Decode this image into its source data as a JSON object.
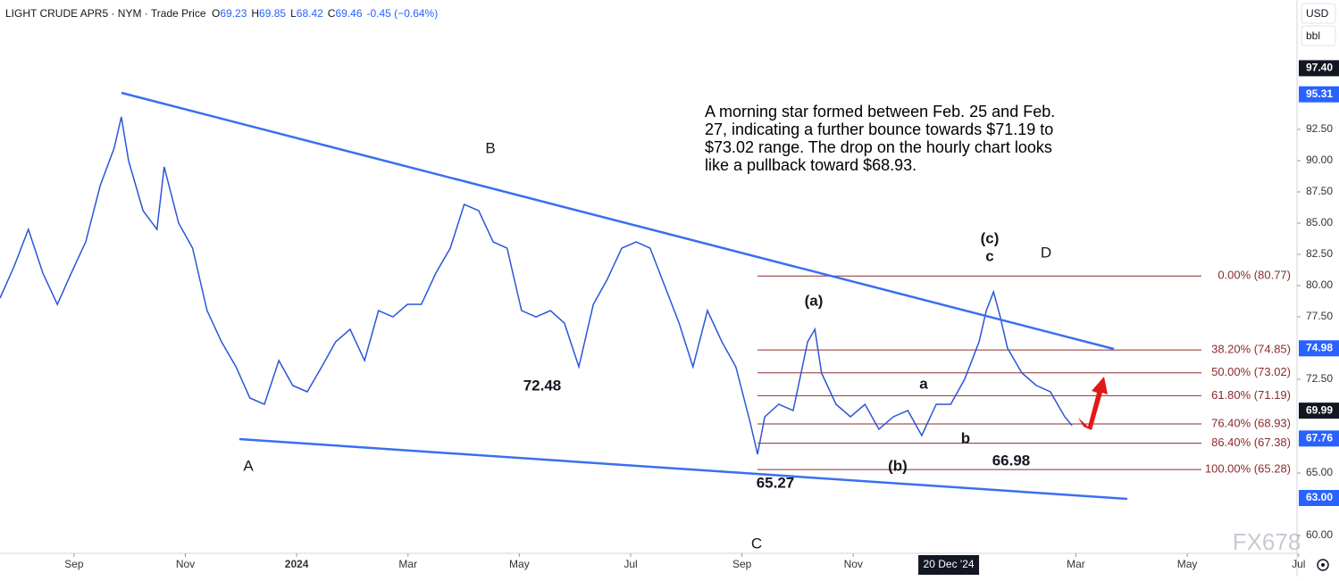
{
  "header": {
    "symbol": "LIGHT CRUDE APR5 · NYM · Trade Price",
    "ohlc": [
      {
        "key": "O",
        "value": 69.23
      },
      {
        "key": "H",
        "value": 69.85
      },
      {
        "key": "L",
        "value": 68.42
      },
      {
        "key": "C",
        "value": 69.46
      }
    ],
    "change": "-0.45 (−0.64%)"
  },
  "currency": "USD",
  "unit": "bbl",
  "watermark": "FX678",
  "chart_data": {
    "type": "line",
    "color": "#2a55d8",
    "x": [
      -1.33,
      -1.08,
      -0.82,
      -0.56,
      -0.3,
      -0.05,
      0.21,
      0.47,
      0.72,
      0.85,
      0.98,
      1.24,
      1.49,
      1.62,
      1.88,
      2.13,
      2.39,
      2.65,
      2.91,
      3.16,
      3.42,
      3.68,
      3.93,
      4.19,
      4.45,
      4.7,
      4.96,
      5.22,
      5.47,
      5.73,
      5.99,
      6.24,
      6.5,
      6.76,
      7.01,
      7.27,
      7.53,
      7.78,
      8.04,
      8.3,
      8.56,
      8.81,
      9.07,
      9.33,
      9.58,
      9.84,
      10.1,
      10.35,
      10.61,
      10.87,
      11.12,
      11.38,
      11.64,
      11.89,
      12.15,
      12.28,
      12.41,
      12.66,
      12.92,
      13.18,
      13.31,
      13.43,
      13.69,
      13.95,
      14.21,
      14.46,
      14.72,
      14.98,
      15.23,
      15.49,
      15.75,
      16,
      16.26,
      16.39,
      16.52,
      16.64,
      16.77,
      17.03,
      17.29,
      17.54,
      17.8,
      17.93
    ],
    "values": [
      79,
      81.5,
      84.5,
      81,
      78.5,
      81,
      83.5,
      88,
      91,
      93.5,
      90,
      86,
      84.5,
      89.5,
      85,
      83,
      78,
      75.5,
      73.5,
      71,
      70.5,
      74,
      72,
      71.5,
      73.5,
      75.5,
      76.5,
      74,
      78,
      77.5,
      78.5,
      78.5,
      81,
      83,
      86.5,
      86,
      83.5,
      83,
      78,
      77.5,
      78,
      77,
      73.5,
      78.5,
      80.5,
      83,
      83.5,
      83,
      80,
      77,
      73.5,
      78,
      75.5,
      73.5,
      69,
      66.5,
      69.5,
      70.5,
      70,
      75.5,
      76.5,
      73,
      70.5,
      69.5,
      70.5,
      68.5,
      69.5,
      70,
      68,
      70.5,
      70.5,
      72.5,
      75.5,
      78,
      79.5,
      77.5,
      75,
      73,
      72,
      71.5,
      69.5,
      68.8
    ],
    "xlim": [
      -1.33,
      21.94
    ],
    "ylim": [
      58.57,
      102.86
    ],
    "xticks": [
      {
        "value": 0,
        "label": "Sep"
      },
      {
        "value": 2,
        "label": "Nov"
      },
      {
        "value": 4,
        "label": "2024"
      },
      {
        "value": 6,
        "label": "Mar"
      },
      {
        "value": 8,
        "label": "May"
      },
      {
        "value": 10,
        "label": "Jul"
      },
      {
        "value": 12,
        "label": "Sep"
      },
      {
        "value": 14,
        "label": "Nov"
      },
      {
        "value": 18,
        "label": "Mar"
      },
      {
        "value": 20,
        "label": "May"
      },
      {
        "value": 22,
        "label": "Jul"
      }
    ],
    "crosshair": {
      "value": 15.65,
      "label": "20 Dec '24"
    },
    "yticks": [
      {
        "value": 92.5,
        "label": "92.50"
      },
      {
        "value": 90,
        "label": "90.00"
      },
      {
        "value": 87.5,
        "label": "87.50"
      },
      {
        "value": 85,
        "label": "85.00"
      },
      {
        "value": 82.5,
        "label": "82.50"
      },
      {
        "value": 80,
        "label": "80.00"
      },
      {
        "value": 77.5,
        "label": "77.50"
      },
      {
        "value": 72.5,
        "label": "72.50"
      },
      {
        "value": 65,
        "label": "65.00"
      },
      {
        "value": 60,
        "label": "60.00"
      }
    ],
    "price_badges": [
      {
        "value": 97.4,
        "label": "97.40",
        "color": "#131722"
      },
      {
        "value": 95.31,
        "label": "95.31",
        "color": "#2962ff"
      },
      {
        "value": 74.98,
        "label": "74.98",
        "color": "#2962ff"
      },
      {
        "value": 69.99,
        "label": "69.99",
        "color": "#131722"
      },
      {
        "value": 67.76,
        "label": "67.76",
        "color": "#2962ff"
      },
      {
        "value": 63,
        "label": "63.00",
        "color": "#2962ff"
      }
    ],
    "fib_levels": [
      {
        "value": 80.77,
        "label": "0.00% (80.77)"
      },
      {
        "value": 74.85,
        "label": "38.20% (74.85)"
      },
      {
        "value": 73.02,
        "label": "50.00% (73.02)"
      },
      {
        "value": 71.19,
        "label": "61.80% (71.19)"
      },
      {
        "value": 68.93,
        "label": "76.40% (68.93)"
      },
      {
        "value": 67.38,
        "label": "86.40% (67.38)"
      },
      {
        "value": 65.28,
        "label": "100.00% (65.28)"
      }
    ],
    "fib_color": "#8b2b2b",
    "wave_labels": [
      "A",
      "B",
      "C",
      "D",
      "(a)",
      "(b)",
      "(c)",
      "a",
      "b",
      "c"
    ],
    "price_notes": [
      72.48,
      65.27,
      66.98
    ],
    "comment": [
      "A morning star formed between Feb. 25 and Feb.",
      "27, indicating a further bounce towards $71.19 to",
      "$73.02 range. The drop on the hourly chart looks",
      "like a pullback toward $68.93."
    ]
  }
}
